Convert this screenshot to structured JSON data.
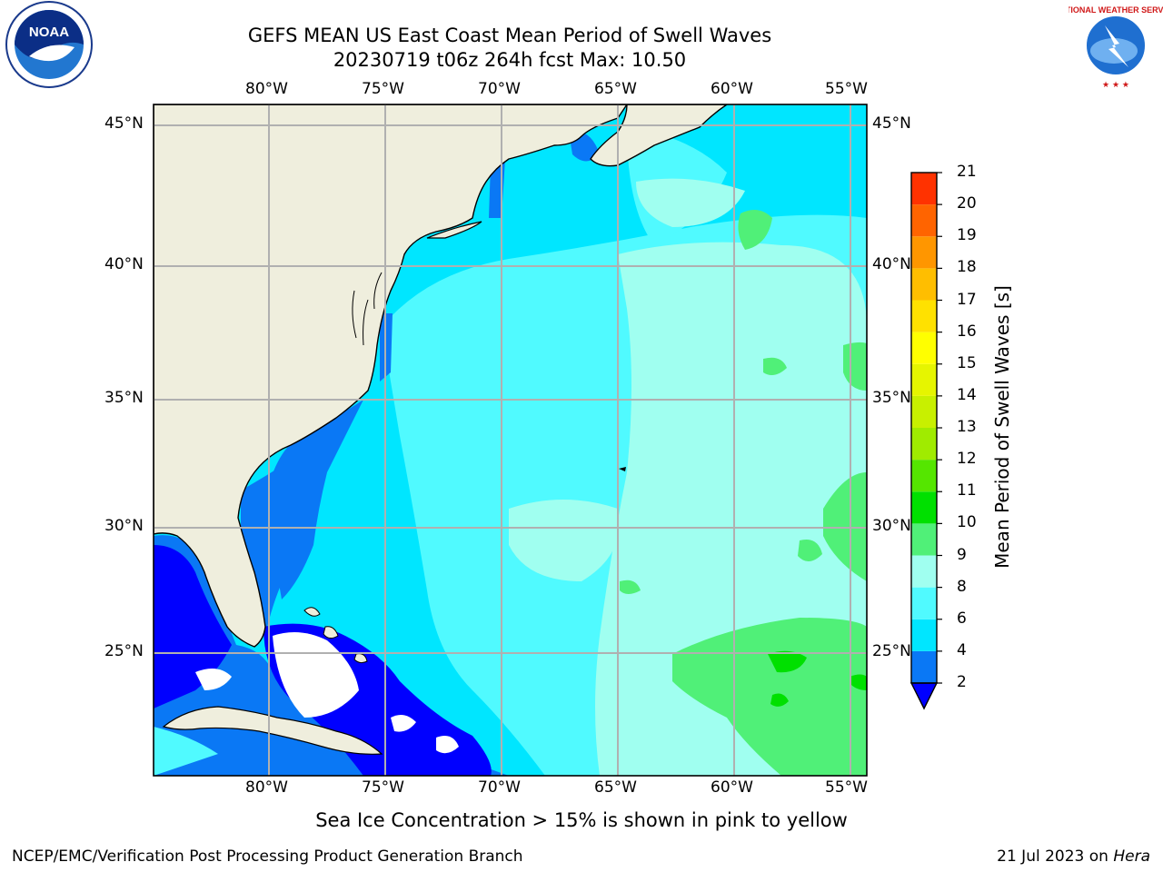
{
  "header": {
    "title_line1": "GEFS MEAN US East Coast Mean Period of Swell Waves",
    "title_line2": "20230719 t06z 264h fcst   Max: 10.50"
  },
  "logos": {
    "left": "NOAA",
    "right": "NATIONAL WEATHER SERVICE"
  },
  "map": {
    "lon_labels": [
      "80°W",
      "75°W",
      "70°W",
      "65°W",
      "60°W",
      "55°W"
    ],
    "lat_labels": [
      "45°N",
      "40°N",
      "35°N",
      "30°N",
      "25°N"
    ],
    "colors": {
      "land": "#efeedd",
      "frame": "#000000",
      "grid": "#b0b0b0"
    }
  },
  "colorbar": {
    "label": "Mean Period of Swell Waves [s]",
    "ticks": [
      "2",
      "4",
      "6",
      "8",
      "9",
      "10",
      "11",
      "12",
      "13",
      "14",
      "15",
      "16",
      "17",
      "18",
      "19",
      "20",
      "21"
    ],
    "colors": [
      "#0a78f5",
      "#00e6ff",
      "#50faff",
      "#a0fff0",
      "#50f078",
      "#00e000",
      "#55e600",
      "#a0eb00",
      "#c8f000",
      "#e6f500",
      "#ffff00",
      "#ffe100",
      "#ffbe00",
      "#ff9600",
      "#ff6400",
      "#ff3200",
      "#ff0000"
    ],
    "under_color": "#0000ff"
  },
  "footer": {
    "note": "Sea Ice Concentration > 15% is shown in pink to yellow",
    "credit": "NCEP/EMC/Verification Post Processing Product Generation Branch",
    "date": "21 Jul 2023 on ",
    "host": "Hera"
  }
}
